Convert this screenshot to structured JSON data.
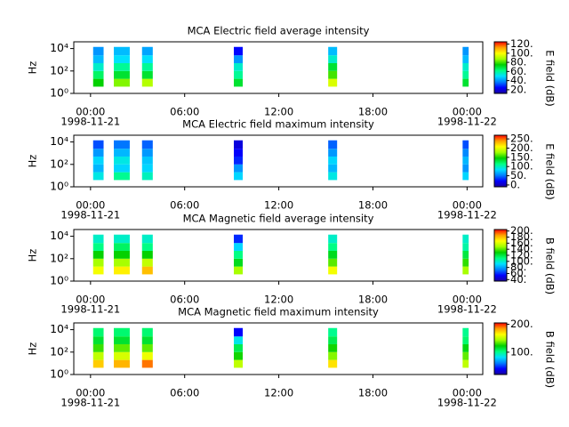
{
  "chart_data": [
    {
      "type": "spectrogram",
      "title": "MCA  Electric field average intensity",
      "ylabel": "Hz",
      "colorbar_label": "E field (dB)",
      "xlim": [
        "1998-11-20T22:56Z",
        "1998-11-22T01:00Z"
      ],
      "xticks": [
        {
          "value": "1998-11-21T00:00Z",
          "label": "00:00",
          "date": "1998-11-21"
        },
        {
          "value": "1998-11-21T06:00Z",
          "label": "06:00"
        },
        {
          "value": "1998-11-21T12:00Z",
          "label": "12:00"
        },
        {
          "value": "1998-11-21T18:00Z",
          "label": "18:00"
        },
        {
          "value": "1998-11-22T00:00Z",
          "label": "00:00",
          "date": "1998-11-22"
        }
      ],
      "ylim": [
        1,
        40000
      ],
      "log_y": true,
      "yticks": [
        {
          "value": 1,
          "label": "10⁰"
        },
        {
          "value": 100,
          "label": "10²"
        },
        {
          "value": 10000,
          "label": "10⁴"
        }
      ],
      "bands": [
        4,
        20,
        100,
        500,
        2500,
        14000
      ],
      "zlim": [
        12,
        125
      ],
      "zticks": [
        {
          "value": 20,
          "label": "20."
        },
        {
          "value": 40,
          "label": "40."
        },
        {
          "value": 60,
          "label": "60."
        },
        {
          "value": 80,
          "label": "80."
        },
        {
          "value": 100,
          "label": "100."
        },
        {
          "value": 120,
          "label": "120."
        }
      ],
      "colormap": [
        "#1a00a0",
        "#0000ff",
        "#0080ff",
        "#00e0ff",
        "#00ff80",
        "#00d000",
        "#a0ff00",
        "#ffff00",
        "#ffa000",
        "#ff0000"
      ],
      "series": [
        {
          "start": "1998-11-21T00:10Z",
          "end": "1998-11-21T00:50Z",
          "values": [
            75,
            65,
            55,
            45,
            40
          ]
        },
        {
          "start": "1998-11-21T01:29Z",
          "end": "1998-11-21T02:30Z",
          "values": [
            85,
            70,
            60,
            50,
            45
          ]
        },
        {
          "start": "1998-11-21T03:17Z",
          "end": "1998-11-21T03:58Z",
          "values": [
            90,
            70,
            60,
            50,
            42
          ]
        },
        {
          "start": "1998-11-21T09:08Z",
          "end": "1998-11-21T09:42Z",
          "values": [
            70,
            60,
            55,
            40,
            25
          ]
        },
        {
          "start": "1998-11-21T15:09Z",
          "end": "1998-11-21T15:43Z",
          "values": [
            95,
            80,
            70,
            55,
            45
          ]
        },
        {
          "start": "1998-11-21T23:43Z",
          "end": "1998-11-22T00:06Z",
          "values": [
            70,
            60,
            55,
            45,
            40
          ]
        }
      ]
    },
    {
      "type": "spectrogram",
      "title": "MCA  Electric field maximum intensity",
      "ylabel": "Hz",
      "colorbar_label": "E field (dB)",
      "xlim": [
        "1998-11-20T22:56Z",
        "1998-11-22T01:00Z"
      ],
      "xticks": [
        {
          "value": "1998-11-21T00:00Z",
          "label": "00:00",
          "date": "1998-11-21"
        },
        {
          "value": "1998-11-21T06:00Z",
          "label": "06:00"
        },
        {
          "value": "1998-11-21T12:00Z",
          "label": "12:00"
        },
        {
          "value": "1998-11-21T18:00Z",
          "label": "18:00"
        },
        {
          "value": "1998-11-22T00:00Z",
          "label": "00:00",
          "date": "1998-11-22"
        }
      ],
      "ylim": [
        1,
        40000
      ],
      "log_y": true,
      "yticks": [
        {
          "value": 1,
          "label": "10⁰"
        },
        {
          "value": 100,
          "label": "10²"
        },
        {
          "value": 10000,
          "label": "10⁴"
        }
      ],
      "bands": [
        4,
        20,
        100,
        500,
        2500,
        14000
      ],
      "zlim": [
        -10,
        270
      ],
      "zticks": [
        {
          "value": 0,
          "label": "0."
        },
        {
          "value": 50,
          "label": "50."
        },
        {
          "value": 100,
          "label": "100."
        },
        {
          "value": 150,
          "label": "150."
        },
        {
          "value": 200,
          "label": "200."
        },
        {
          "value": 250,
          "label": "250."
        }
      ],
      "colormap": [
        "#1a00a0",
        "#0000ff",
        "#0080ff",
        "#00e0ff",
        "#00ff80",
        "#00d000",
        "#a0ff00",
        "#ffff00",
        "#ffa000",
        "#ff0000"
      ],
      "series": [
        {
          "start": "1998-11-21T00:10Z",
          "end": "1998-11-21T00:50Z",
          "values": [
            90,
            70,
            80,
            60,
            40
          ]
        },
        {
          "start": "1998-11-21T01:29Z",
          "end": "1998-11-21T02:30Z",
          "values": [
            110,
            80,
            90,
            70,
            50
          ]
        },
        {
          "start": "1998-11-21T03:17Z",
          "end": "1998-11-21T03:58Z",
          "values": [
            100,
            80,
            75,
            60,
            45
          ]
        },
        {
          "start": "1998-11-21T09:08Z",
          "end": "1998-11-21T09:42Z",
          "values": [
            80,
            60,
            30,
            20,
            10
          ]
        },
        {
          "start": "1998-11-21T15:09Z",
          "end": "1998-11-21T15:43Z",
          "values": [
            90,
            70,
            80,
            60,
            45
          ]
        },
        {
          "start": "1998-11-21T23:43Z",
          "end": "1998-11-22T00:06Z",
          "values": [
            80,
            60,
            70,
            55,
            40
          ]
        }
      ]
    },
    {
      "type": "spectrogram",
      "title": "MCA  Magnetic field average intensity",
      "ylabel": "Hz",
      "colorbar_label": "B field (dB)",
      "xlim": [
        "1998-11-20T22:56Z",
        "1998-11-22T01:00Z"
      ],
      "xticks": [
        {
          "value": "1998-11-21T00:00Z",
          "label": "00:00",
          "date": "1998-11-21"
        },
        {
          "value": "1998-11-21T06:00Z",
          "label": "06:00"
        },
        {
          "value": "1998-11-21T12:00Z",
          "label": "12:00"
        },
        {
          "value": "1998-11-21T18:00Z",
          "label": "18:00"
        },
        {
          "value": "1998-11-22T00:00Z",
          "label": "00:00",
          "date": "1998-11-22"
        }
      ],
      "ylim": [
        1,
        40000
      ],
      "log_y": true,
      "yticks": [
        {
          "value": 1,
          "label": "10⁰"
        },
        {
          "value": 100,
          "label": "10²"
        },
        {
          "value": 10000,
          "label": "10⁴"
        }
      ],
      "bands": [
        4,
        20,
        100,
        500,
        2500,
        14000
      ],
      "zlim": [
        35,
        205
      ],
      "zticks": [
        {
          "value": 40,
          "label": "40."
        },
        {
          "value": 60,
          "label": "60."
        },
        {
          "value": 80,
          "label": "80."
        },
        {
          "value": 100,
          "label": "100."
        },
        {
          "value": 120,
          "label": "120."
        },
        {
          "value": 140,
          "label": "140."
        },
        {
          "value": 160,
          "label": "160."
        },
        {
          "value": 180,
          "label": "180."
        },
        {
          "value": 200,
          "label": "200."
        }
      ],
      "colormap": [
        "#1a00a0",
        "#0000ff",
        "#0080ff",
        "#00e0ff",
        "#00ff80",
        "#00d000",
        "#a0ff00",
        "#ffff00",
        "#ffa000",
        "#ff0000"
      ],
      "series": [
        {
          "start": "1998-11-21T00:10Z",
          "end": "1998-11-21T00:50Z",
          "values": [
            165,
            150,
            130,
            110,
            100
          ]
        },
        {
          "start": "1998-11-21T01:29Z",
          "end": "1998-11-21T02:30Z",
          "values": [
            170,
            150,
            130,
            115,
            100
          ]
        },
        {
          "start": "1998-11-21T03:17Z",
          "end": "1998-11-21T03:58Z",
          "values": [
            180,
            155,
            130,
            110,
            100
          ]
        },
        {
          "start": "1998-11-21T09:08Z",
          "end": "1998-11-21T09:42Z",
          "values": [
            150,
            125,
            110,
            90,
            60
          ]
        },
        {
          "start": "1998-11-21T15:09Z",
          "end": "1998-11-21T15:43Z",
          "values": [
            165,
            140,
            125,
            110,
            100
          ]
        },
        {
          "start": "1998-11-21T23:43Z",
          "end": "1998-11-22T00:06Z",
          "values": [
            150,
            135,
            120,
            105,
            100
          ]
        }
      ]
    },
    {
      "type": "spectrogram",
      "title": "MCA  Magnetic field maximum intensity",
      "ylabel": "Hz",
      "colorbar_label": "B field (dB)",
      "xlim": [
        "1998-11-20T22:56Z",
        "1998-11-22T01:00Z"
      ],
      "xticks": [
        {
          "value": "1998-11-21T00:00Z",
          "label": "00:00",
          "date": "1998-11-21"
        },
        {
          "value": "1998-11-21T06:00Z",
          "label": "06:00"
        },
        {
          "value": "1998-11-21T12:00Z",
          "label": "12:00"
        },
        {
          "value": "1998-11-21T18:00Z",
          "label": "18:00"
        },
        {
          "value": "1998-11-22T00:00Z",
          "label": "00:00",
          "date": "1998-11-22"
        }
      ],
      "ylim": [
        1,
        40000
      ],
      "log_y": true,
      "yticks": [
        {
          "value": 1,
          "label": "10⁰"
        },
        {
          "value": 100,
          "label": "10²"
        },
        {
          "value": 10000,
          "label": "10⁴"
        }
      ],
      "bands": [
        4,
        20,
        100,
        500,
        2500,
        14000
      ],
      "zlim": [
        20,
        205
      ],
      "zticks": [
        {
          "value": 100,
          "label": "100."
        },
        {
          "value": 200,
          "label": "200."
        }
      ],
      "colormap": [
        "#1a00a0",
        "#0000ff",
        "#0080ff",
        "#00e0ff",
        "#00ff80",
        "#00d000",
        "#a0ff00",
        "#ffff00",
        "#ffa000",
        "#ff0000"
      ],
      "series": [
        {
          "start": "1998-11-21T00:10Z",
          "end": "1998-11-21T00:50Z",
          "values": [
            175,
            150,
            130,
            115,
            105
          ]
        },
        {
          "start": "1998-11-21T01:29Z",
          "end": "1998-11-21T02:30Z",
          "values": [
            180,
            155,
            135,
            115,
            105
          ]
        },
        {
          "start": "1998-11-21T03:17Z",
          "end": "1998-11-21T03:58Z",
          "values": [
            190,
            160,
            135,
            115,
            105
          ]
        },
        {
          "start": "1998-11-21T09:08Z",
          "end": "1998-11-21T09:42Z",
          "values": [
            150,
            125,
            110,
            85,
            40
          ]
        },
        {
          "start": "1998-11-21T15:09Z",
          "end": "1998-11-21T15:43Z",
          "values": [
            170,
            140,
            125,
            110,
            100
          ]
        },
        {
          "start": "1998-11-21T23:43Z",
          "end": "1998-11-22T00:06Z",
          "values": [
            150,
            135,
            120,
            105,
            100
          ]
        }
      ]
    }
  ]
}
